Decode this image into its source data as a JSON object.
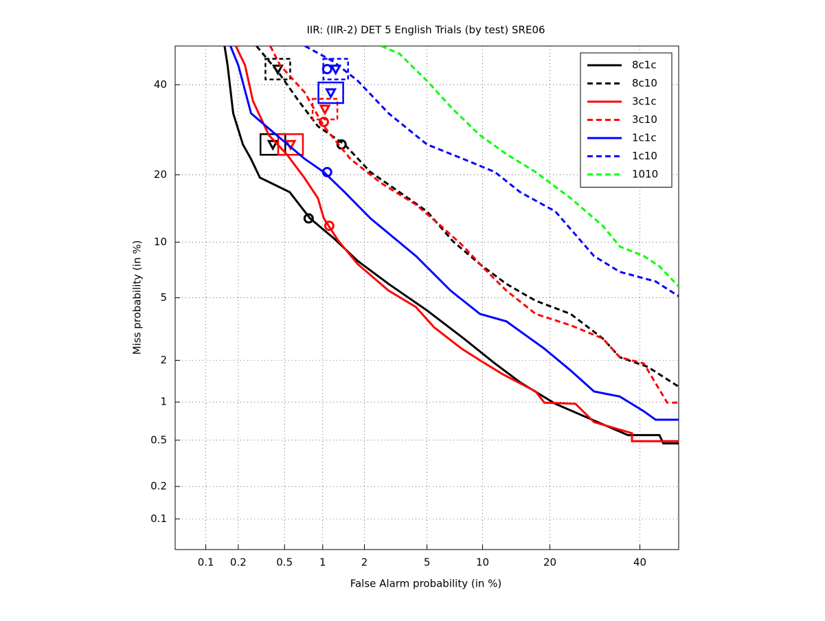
{
  "chart_data": {
    "type": "det",
    "title": "IIR: (IIR-2) DET 5 English Trials (by test) SRE06",
    "x_label": "False Alarm probability (in %)",
    "y_label": "Miss probability (in %)",
    "scale": "probit",
    "xlim": [
      0.05,
      50
    ],
    "ylim": [
      0.05,
      50
    ],
    "xticks": [
      0.1,
      0.2,
      0.5,
      1,
      2,
      5,
      10,
      20,
      40
    ],
    "yticks": [
      0.1,
      0.2,
      0.5,
      1,
      2,
      5,
      10,
      20,
      40
    ],
    "grid": true,
    "legend": "upper right",
    "series": [
      {
        "name": "8c1c",
        "color": "#000000",
        "dashed": false,
        "x": [
          0.15,
          0.16,
          0.18,
          0.22,
          0.26,
          0.31,
          0.55,
          0.8,
          1.2,
          1.8,
          2.9,
          5,
          8,
          11.5,
          15,
          21,
          29,
          37,
          45,
          46,
          50
        ],
        "values": [
          50,
          45,
          33,
          26,
          23,
          19.5,
          17,
          13,
          10.5,
          8,
          6,
          4.2,
          2.8,
          1.9,
          1.4,
          0.97,
          0.72,
          0.55,
          0.55,
          0.47,
          0.47
        ],
        "min_dcf": [
          0.78,
          13
        ],
        "act_dcf": [
          0.4,
          26
        ]
      },
      {
        "name": "8c10",
        "color": "#000000",
        "dashed": true,
        "x": [
          0.29,
          0.45,
          0.65,
          0.92,
          1.45,
          2.2,
          3.4,
          5,
          7,
          9.7,
          13,
          17.5,
          24,
          31,
          35,
          42,
          50
        ],
        "values": [
          50,
          43,
          36,
          30,
          26,
          20.5,
          17,
          14,
          10.1,
          7.7,
          6,
          4.8,
          4,
          2.8,
          2.1,
          1.8,
          1.3
        ],
        "min_dcf": [
          1.38,
          26
        ],
        "act_dcf": [
          0.44,
          44
        ]
      },
      {
        "name": "3c1c",
        "color": "#ff0000",
        "dashed": false,
        "x": [
          0.19,
          0.23,
          0.27,
          0.37,
          0.52,
          0.72,
          0.92,
          1.02,
          1.3,
          1.8,
          2.9,
          4.3,
          5.5,
          7.8,
          9.7,
          12.5,
          17.5,
          19,
          25,
          29,
          38,
          38,
          50
        ],
        "values": [
          50,
          45,
          36,
          28,
          24,
          19.5,
          16,
          13,
          10.2,
          7.7,
          5.5,
          4.4,
          3.3,
          2.4,
          2,
          1.6,
          1.2,
          0.99,
          0.97,
          0.7,
          0.57,
          0.49,
          0.49
        ],
        "min_dcf": [
          1.12,
          12
        ],
        "act_dcf": [
          0.56,
          26
        ]
      },
      {
        "name": "3c10",
        "color": "#ff0000",
        "dashed": true,
        "x": [
          0.38,
          0.46,
          0.73,
          1.02,
          1.6,
          2.6,
          4.3,
          6,
          8,
          10.3,
          13,
          17.5,
          24,
          31,
          35,
          41,
          47,
          50
        ],
        "values": [
          50,
          45,
          38,
          30,
          23,
          18.5,
          15,
          12,
          9.5,
          7.2,
          5.5,
          4,
          3.4,
          2.8,
          2.1,
          1.9,
          0.99,
          0.99
        ],
        "min_dcf": [
          1.02,
          31
        ],
        "act_dcf": [
          1.04,
          34
        ]
      },
      {
        "name": "1c1c",
        "color": "#0000ff",
        "dashed": false,
        "x": [
          0.17,
          0.2,
          0.26,
          0.43,
          0.73,
          1.02,
          1.45,
          2.2,
          4.3,
          6.8,
          9.7,
          13,
          19,
          24,
          29,
          35,
          41,
          44,
          50
        ],
        "values": [
          50,
          45,
          33,
          28,
          23,
          20.5,
          17,
          13,
          8.5,
          5.5,
          4,
          3.6,
          2.4,
          1.7,
          1.2,
          1.1,
          0.85,
          0.73,
          0.73
        ],
        "min_dcf": [
          1.08,
          20.5
        ],
        "act_dcf": [
          1.15,
          38
        ]
      },
      {
        "name": "1c10",
        "color": "#0000ff",
        "dashed": true,
        "x": [
          0.73,
          1.2,
          1.8,
          2.9,
          5,
          8,
          11.5,
          15,
          21,
          29,
          35,
          44,
          50
        ],
        "values": [
          50,
          46,
          41,
          33,
          26,
          23,
          20.5,
          17,
          14,
          8.5,
          7,
          6.2,
          5.1
        ],
        "min_dcf": [
          1.08,
          44
        ],
        "act_dcf": [
          1.25,
          44
        ]
      },
      {
        "name": "1010",
        "color": "#00ff00",
        "dashed": true,
        "x": [
          2.6,
          3.4,
          5,
          7,
          9.7,
          13,
          17.5,
          24,
          31,
          35,
          41,
          45,
          50
        ],
        "values": [
          50,
          48,
          41,
          34,
          28,
          24,
          20.5,
          16,
          12,
          9.5,
          8.5,
          7.5,
          5.8
        ]
      }
    ]
  }
}
